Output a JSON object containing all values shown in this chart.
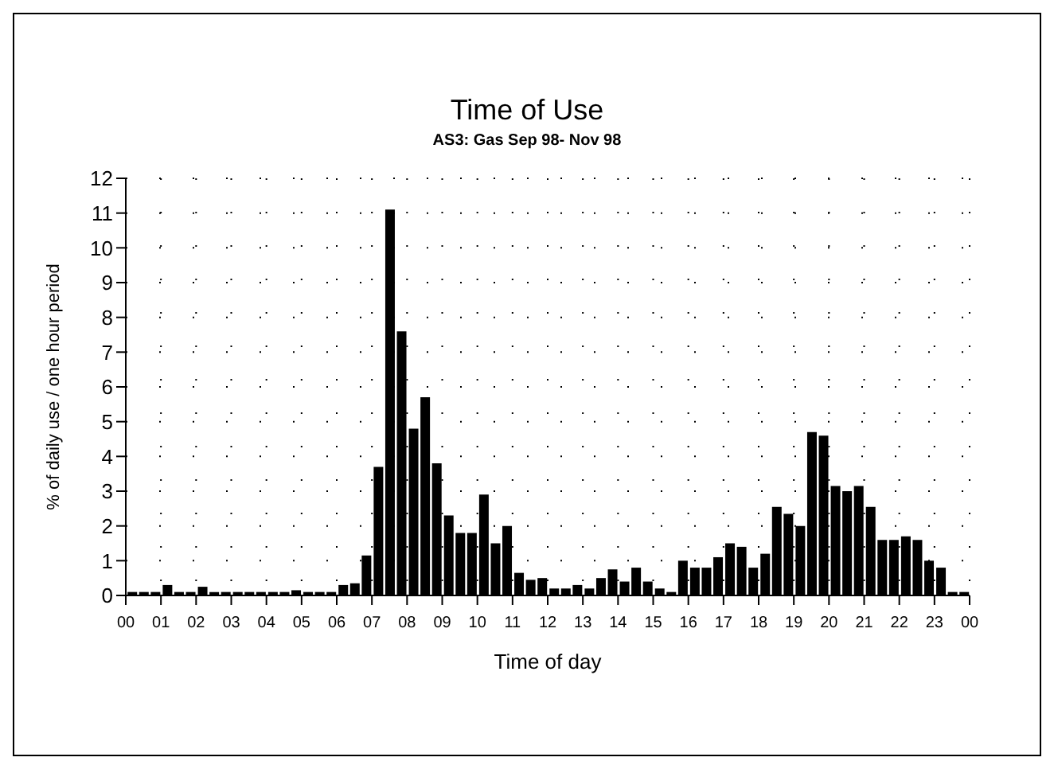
{
  "chart_data": {
    "type": "bar",
    "title": "Time of Use",
    "subtitle": "AS3: Gas Sep 98- Nov 98",
    "xlabel": "Time of day",
    "ylabel": "% of daily use / one hour period",
    "x": [
      0.17,
      0.5,
      0.83,
      1.17,
      1.5,
      1.83,
      2.17,
      2.5,
      2.83,
      3.17,
      3.5,
      3.83,
      4.17,
      4.5,
      4.83,
      5.17,
      5.5,
      5.83,
      6.17,
      6.5,
      6.83,
      7.17,
      7.5,
      7.83,
      8.17,
      8.5,
      8.83,
      9.17,
      9.5,
      9.83,
      10.17,
      10.5,
      10.83,
      11.17,
      11.5,
      11.83,
      12.17,
      12.5,
      12.83,
      13.17,
      13.5,
      13.83,
      14.17,
      14.5,
      14.83,
      15.17,
      15.5,
      15.83,
      16.17,
      16.5,
      16.83,
      17.17,
      17.5,
      17.83,
      18.17,
      18.5,
      18.83,
      19.17,
      19.5,
      19.83,
      20.17,
      20.5,
      20.83,
      21.17,
      21.5,
      21.83,
      22.17,
      22.5,
      22.83,
      23.17,
      23.5,
      23.83
    ],
    "values": [
      0.1,
      0.1,
      0.1,
      0.3,
      0.1,
      0.1,
      0.25,
      0.1,
      0.1,
      0.1,
      0.1,
      0.1,
      0.1,
      0.1,
      0.15,
      0.1,
      0.1,
      0.1,
      0.3,
      0.35,
      1.15,
      3.7,
      11.1,
      7.6,
      4.8,
      5.7,
      3.8,
      2.3,
      1.8,
      1.8,
      2.9,
      1.5,
      2.0,
      0.65,
      0.45,
      0.5,
      0.2,
      0.2,
      0.3,
      0.2,
      0.5,
      0.75,
      0.4,
      0.8,
      0.4,
      0.2,
      0.1,
      1.0,
      0.8,
      0.8,
      1.1,
      1.5,
      1.4,
      0.8,
      1.2,
      2.55,
      2.35,
      2.0,
      4.7,
      4.6,
      3.15,
      3.0,
      3.15,
      2.55,
      1.6,
      1.6,
      1.7,
      1.6,
      1.0,
      0.8,
      0.1,
      0.1
    ],
    "color": "#000000",
    "xlim": [
      0,
      24
    ],
    "xticks": [
      {
        "value": 0,
        "label": "00"
      },
      {
        "value": 1,
        "label": "01"
      },
      {
        "value": 2,
        "label": "02"
      },
      {
        "value": 3,
        "label": "03"
      },
      {
        "value": 4,
        "label": "04"
      },
      {
        "value": 5,
        "label": "05"
      },
      {
        "value": 6,
        "label": "06"
      },
      {
        "value": 7,
        "label": "07"
      },
      {
        "value": 8,
        "label": "08"
      },
      {
        "value": 9,
        "label": "09"
      },
      10,
      11,
      12,
      13,
      14,
      15,
      16,
      17,
      18,
      19,
      20,
      21,
      22,
      23,
      {
        "value": 24,
        "label": "00"
      }
    ],
    "ylim": [
      0,
      12
    ],
    "yticks": [
      0,
      1,
      2,
      3,
      4,
      5,
      6,
      7,
      8,
      9,
      10,
      11,
      12
    ],
    "grid": true,
    "line_style": "dotted"
  }
}
